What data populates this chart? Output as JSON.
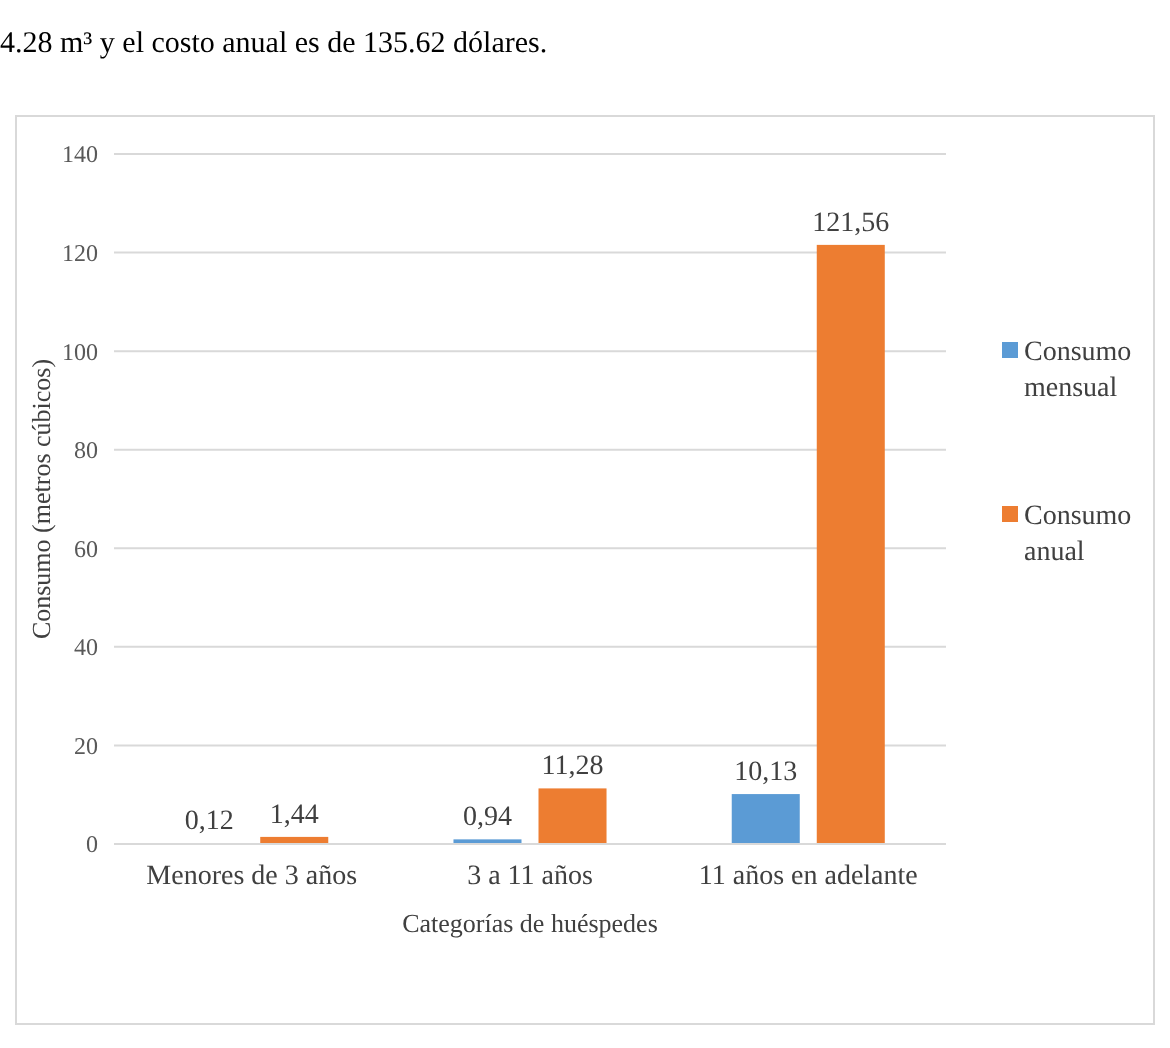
{
  "chart_data": {
    "type": "bar",
    "xlabel": "Categorías de huéspedes",
    "ylabel": "Consumo (metros cúbicos)",
    "annotations": [
      "4.28 m³ y el costo anual es de 135.62 dólares."
    ],
    "categories": [
      "Menores de 3 años",
      "3 a 11 años",
      "11 años en adelante"
    ],
    "series": [
      {
        "name": "Consumo mensual",
        "color": "#5b9bd5",
        "values": [
          0.12,
          0.94,
          10.13
        ],
        "value_labels": [
          "0,12",
          "0,94",
          "10,13"
        ]
      },
      {
        "name": "Consumo anual",
        "color": "#ed7d31",
        "values": [
          1.44,
          11.28,
          121.56
        ],
        "value_labels": [
          "1,44",
          "11,28",
          "121,56"
        ]
      }
    ],
    "ylim": [
      0,
      140
    ],
    "yticks": [
      0,
      20,
      40,
      60,
      80,
      100,
      120,
      140
    ],
    "grid": "y",
    "legend": "right"
  }
}
